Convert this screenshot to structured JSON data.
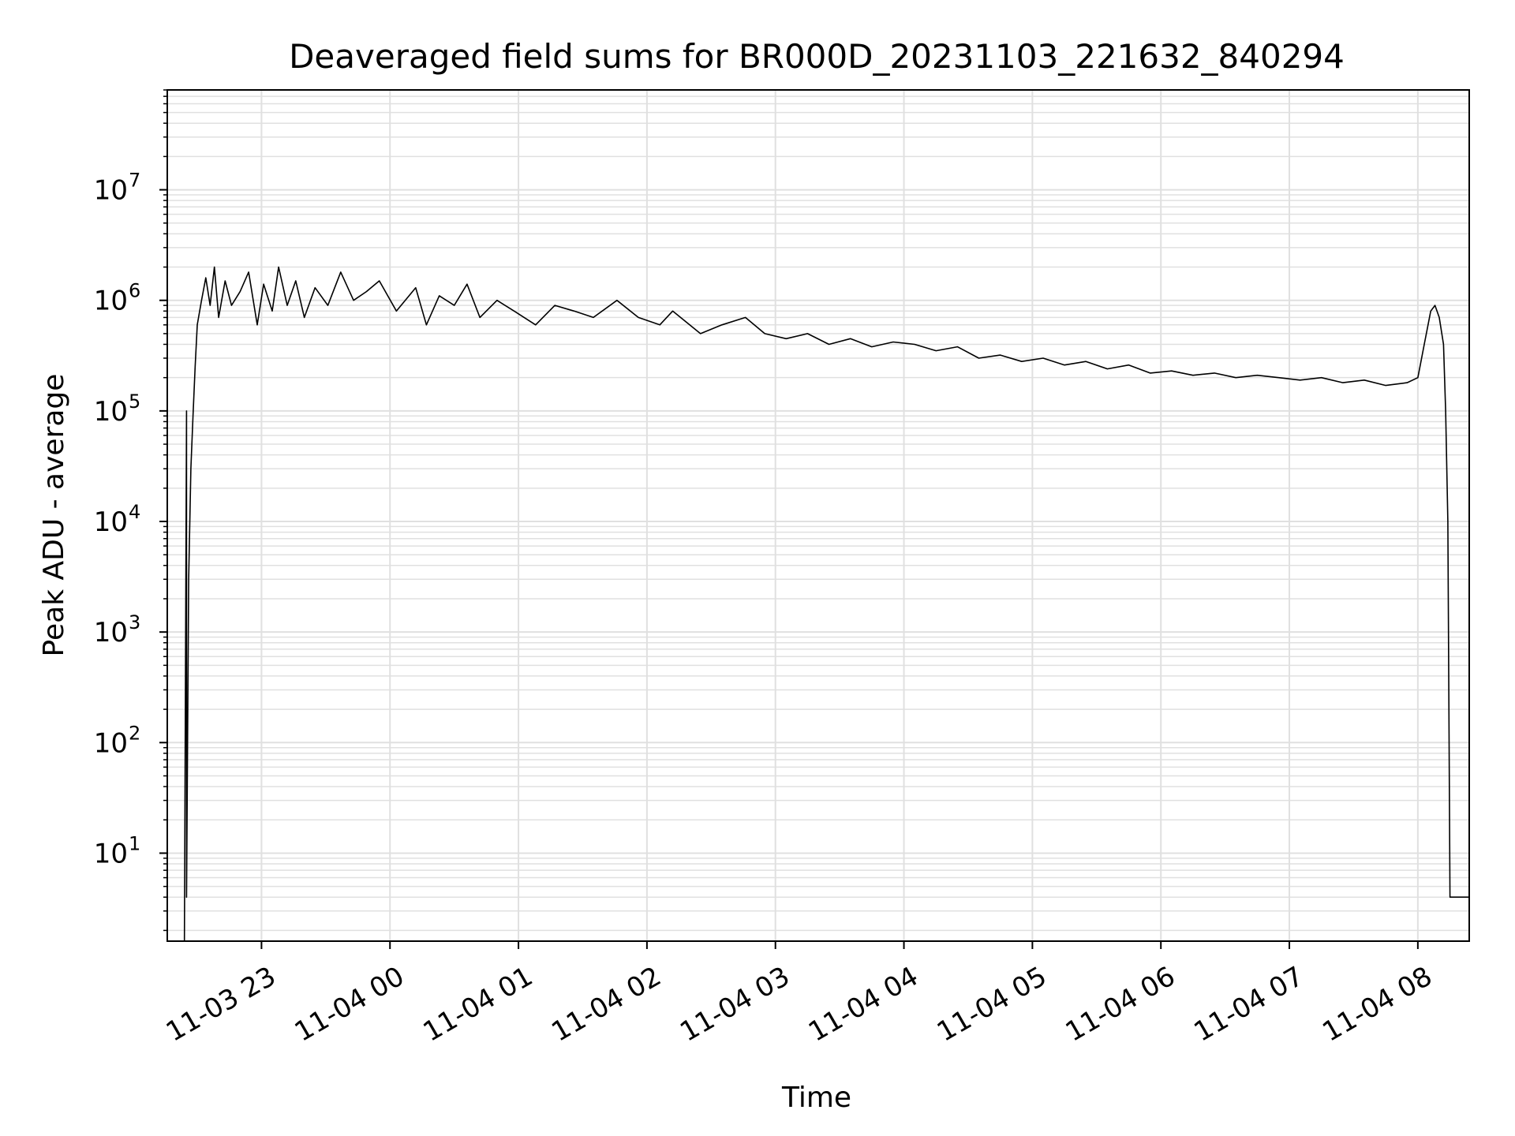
{
  "chart_data": {
    "type": "line",
    "title": "Deaveraged field sums for BR000D_20231103_221632_840294",
    "xlabel": "Time",
    "ylabel": "Peak ADU - average",
    "yscale": "log",
    "ylim": [
      1.6,
      80000000
    ],
    "xlim": [
      "2023-11-03 22:16",
      "2023-11-04 08:24"
    ],
    "x_ticks": [
      {
        "t": "2023-11-03 23:00",
        "label": "11-03 23"
      },
      {
        "t": "2023-11-04 00:00",
        "label": "11-04 00"
      },
      {
        "t": "2023-11-04 01:00",
        "label": "11-04 01"
      },
      {
        "t": "2023-11-04 02:00",
        "label": "11-04 02"
      },
      {
        "t": "2023-11-04 03:00",
        "label": "11-04 03"
      },
      {
        "t": "2023-11-04 04:00",
        "label": "11-04 04"
      },
      {
        "t": "2023-11-04 05:00",
        "label": "11-04 05"
      },
      {
        "t": "2023-11-04 06:00",
        "label": "11-04 06"
      },
      {
        "t": "2023-11-04 07:00",
        "label": "11-04 07"
      },
      {
        "t": "2023-11-04 08:00",
        "label": "11-04 08"
      }
    ],
    "y_ticks": [
      {
        "value": 10,
        "base": "10",
        "exp": "1"
      },
      {
        "value": 100,
        "base": "10",
        "exp": "2"
      },
      {
        "value": 1000,
        "base": "10",
        "exp": "3"
      },
      {
        "value": 10000,
        "base": "10",
        "exp": "4"
      },
      {
        "value": 100000,
        "base": "10",
        "exp": "5"
      },
      {
        "value": 1000000,
        "base": "10",
        "exp": "6"
      },
      {
        "value": 10000000,
        "base": "10",
        "exp": "7"
      }
    ],
    "grid": true,
    "line_color": "#000000",
    "grid_color": "#e0e0e0",
    "series": [
      {
        "x": [
          "2023-11-03 22:24",
          "2023-11-03 22:25",
          "2023-11-03 22:25",
          "2023-11-03 22:26",
          "2023-11-03 22:27",
          "2023-11-03 22:28",
          "2023-11-03 22:29",
          "2023-11-03 22:30",
          "2023-11-03 22:32",
          "2023-11-03 22:34",
          "2023-11-03 22:36",
          "2023-11-03 22:38",
          "2023-11-03 22:40",
          "2023-11-03 22:43",
          "2023-11-03 22:46",
          "2023-11-03 22:50",
          "2023-11-03 22:54",
          "2023-11-03 22:58",
          "2023-11-03 23:01",
          "2023-11-03 23:05",
          "2023-11-03 23:08",
          "2023-11-03 23:12",
          "2023-11-03 23:16",
          "2023-11-03 23:20",
          "2023-11-03 23:25",
          "2023-11-03 23:31",
          "2023-11-03 23:37",
          "2023-11-03 23:43",
          "2023-11-03 23:49",
          "2023-11-03 23:55",
          "2023-11-04 00:03",
          "2023-11-04 00:12",
          "2023-11-04 00:17",
          "2023-11-04 00:23",
          "2023-11-04 00:30",
          "2023-11-04 00:36",
          "2023-11-04 00:42",
          "2023-11-04 00:50",
          "2023-11-04 00:58",
          "2023-11-04 01:08",
          "2023-11-04 01:17",
          "2023-11-04 01:26",
          "2023-11-04 01:35",
          "2023-11-04 01:46",
          "2023-11-04 01:56",
          "2023-11-04 02:06",
          "2023-11-04 02:12",
          "2023-11-04 02:25",
          "2023-11-04 02:35",
          "2023-11-04 02:46",
          "2023-11-04 02:55",
          "2023-11-04 03:05",
          "2023-11-04 03:15",
          "2023-11-04 03:25",
          "2023-11-04 03:35",
          "2023-11-04 03:45",
          "2023-11-04 03:55",
          "2023-11-04 04:05",
          "2023-11-04 04:15",
          "2023-11-04 04:25",
          "2023-11-04 04:35",
          "2023-11-04 04:45",
          "2023-11-04 04:55",
          "2023-11-04 05:05",
          "2023-11-04 05:15",
          "2023-11-04 05:25",
          "2023-11-04 05:35",
          "2023-11-04 05:45",
          "2023-11-04 05:55",
          "2023-11-04 06:05",
          "2023-11-04 06:15",
          "2023-11-04 06:25",
          "2023-11-04 06:35",
          "2023-11-04 06:45",
          "2023-11-04 06:55",
          "2023-11-04 07:05",
          "2023-11-04 07:15",
          "2023-11-04 07:25",
          "2023-11-04 07:35",
          "2023-11-04 07:45",
          "2023-11-04 07:55",
          "2023-11-04 08:00",
          "2023-11-04 08:03",
          "2023-11-04 08:06",
          "2023-11-04 08:08",
          "2023-11-04 08:10",
          "2023-11-04 08:12",
          "2023-11-04 08:13",
          "2023-11-04 08:14",
          "2023-11-04 08:15",
          "2023-11-04 08:24"
        ],
        "y": [
          1.6,
          100000,
          4,
          3000,
          30000,
          90000,
          250000,
          600000,
          1000000,
          1600000,
          900000,
          2000000,
          700000,
          1500000,
          900000,
          1200000,
          1800000,
          600000,
          1400000,
          800000,
          2000000,
          900000,
          1500000,
          700000,
          1300000,
          900000,
          1800000,
          1000000,
          1200000,
          1500000,
          800000,
          1300000,
          600000,
          1100000,
          900000,
          1400000,
          700000,
          1000000,
          800000,
          600000,
          900000,
          800000,
          700000,
          1000000,
          700000,
          600000,
          800000,
          500000,
          600000,
          700000,
          500000,
          450000,
          500000,
          400000,
          450000,
          380000,
          420000,
          400000,
          350000,
          380000,
          300000,
          320000,
          280000,
          300000,
          260000,
          280000,
          240000,
          260000,
          220000,
          230000,
          210000,
          220000,
          200000,
          210000,
          200000,
          190000,
          200000,
          180000,
          190000,
          170000,
          180000,
          200000,
          400000,
          800000,
          900000,
          700000,
          400000,
          100000,
          10000,
          4,
          4
        ]
      }
    ]
  }
}
